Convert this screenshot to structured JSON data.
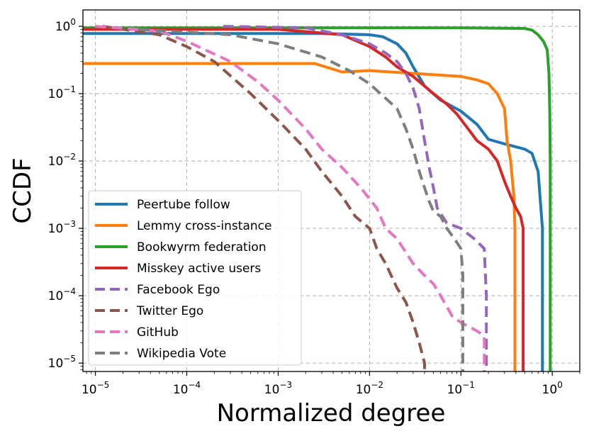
{
  "chart_data": {
    "type": "line",
    "title": "",
    "xlabel": "Normalized degree",
    "ylabel": "CCDF",
    "xscale": "log",
    "yscale": "log",
    "xlim": [
      7.3e-06,
      2.0
    ],
    "ylim": [
      7.5e-06,
      1.75
    ],
    "grid": true,
    "legend_position": "lower-left",
    "x_ticks": [
      {
        "value": 1e-05,
        "base": "10",
        "exp": "−5"
      },
      {
        "value": 0.0001,
        "base": "10",
        "exp": "−4"
      },
      {
        "value": 0.001,
        "base": "10",
        "exp": "−3"
      },
      {
        "value": 0.01,
        "base": "10",
        "exp": "−2"
      },
      {
        "value": 0.1,
        "base": "10",
        "exp": "−1"
      },
      {
        "value": 1,
        "base": "10",
        "exp": "0"
      }
    ],
    "y_ticks": [
      {
        "value": 1e-05,
        "base": "10",
        "exp": "−5"
      },
      {
        "value": 0.0001,
        "base": "10",
        "exp": "−4"
      },
      {
        "value": 0.001,
        "base": "10",
        "exp": "−3"
      },
      {
        "value": 0.01,
        "base": "10",
        "exp": "−2"
      },
      {
        "value": 0.1,
        "base": "10",
        "exp": "−1"
      },
      {
        "value": 1,
        "base": "10",
        "exp": "0"
      }
    ],
    "series": [
      {
        "name": "Peertube follow",
        "color": "#1f77b4",
        "dashed": false,
        "points": [
          [
            7.3e-06,
            0.78
          ],
          [
            0.003,
            0.78
          ],
          [
            0.01,
            0.75
          ],
          [
            0.014,
            0.7
          ],
          [
            0.02,
            0.55
          ],
          [
            0.025,
            0.4
          ],
          [
            0.03,
            0.25
          ],
          [
            0.04,
            0.13
          ],
          [
            0.06,
            0.08
          ],
          [
            0.1,
            0.055
          ],
          [
            0.15,
            0.035
          ],
          [
            0.2,
            0.021
          ],
          [
            0.3,
            0.018
          ],
          [
            0.5,
            0.015
          ],
          [
            0.6,
            0.013
          ],
          [
            0.7,
            0.007
          ],
          [
            0.75,
            0.002
          ],
          [
            0.78,
            0.001
          ],
          [
            0.78,
            7.5e-06
          ]
        ]
      },
      {
        "name": "Lemmy cross-instance",
        "color": "#ff7f0e",
        "dashed": false,
        "points": [
          [
            7.3e-06,
            0.28
          ],
          [
            0.0025,
            0.28
          ],
          [
            0.005,
            0.21
          ],
          [
            0.01,
            0.22
          ],
          [
            0.03,
            0.2
          ],
          [
            0.1,
            0.18
          ],
          [
            0.15,
            0.16
          ],
          [
            0.2,
            0.14
          ],
          [
            0.25,
            0.1
          ],
          [
            0.3,
            0.06
          ],
          [
            0.32,
            0.02
          ],
          [
            0.35,
            0.01
          ],
          [
            0.38,
            0.003
          ],
          [
            0.39,
            0.001
          ],
          [
            0.39,
            7.5e-06
          ]
        ]
      },
      {
        "name": "Bookwyrm federation",
        "color": "#2ca02c",
        "dashed": false,
        "points": [
          [
            7.3e-06,
            0.95
          ],
          [
            0.1,
            0.95
          ],
          [
            0.5,
            0.93
          ],
          [
            0.6,
            0.88
          ],
          [
            0.7,
            0.75
          ],
          [
            0.8,
            0.6
          ],
          [
            0.88,
            0.45
          ],
          [
            0.92,
            0.2
          ],
          [
            0.94,
            0.05
          ],
          [
            0.95,
            0.01
          ],
          [
            0.95,
            7.5e-06
          ]
        ]
      },
      {
        "name": "Misskey active users",
        "color": "#d62728",
        "dashed": false,
        "points": [
          [
            7.3e-06,
            0.9
          ],
          [
            0.001,
            0.9
          ],
          [
            0.005,
            0.75
          ],
          [
            0.01,
            0.5
          ],
          [
            0.015,
            0.35
          ],
          [
            0.02,
            0.25
          ],
          [
            0.03,
            0.18
          ],
          [
            0.05,
            0.1
          ],
          [
            0.07,
            0.07
          ],
          [
            0.09,
            0.05
          ],
          [
            0.12,
            0.03
          ],
          [
            0.15,
            0.02
          ],
          [
            0.2,
            0.015
          ],
          [
            0.25,
            0.01
          ],
          [
            0.3,
            0.005
          ],
          [
            0.35,
            0.003
          ],
          [
            0.4,
            0.002
          ],
          [
            0.45,
            0.0015
          ],
          [
            0.48,
            0.001
          ],
          [
            0.48,
            7.5e-06
          ]
        ]
      },
      {
        "name": "Facebook Ego",
        "color": "#9467bd",
        "dashed": true,
        "points": [
          [
            0.00025,
            1.0
          ],
          [
            0.002,
            0.95
          ],
          [
            0.005,
            0.75
          ],
          [
            0.01,
            0.55
          ],
          [
            0.015,
            0.4
          ],
          [
            0.02,
            0.3
          ],
          [
            0.025,
            0.2
          ],
          [
            0.03,
            0.12
          ],
          [
            0.035,
            0.06
          ],
          [
            0.04,
            0.02
          ],
          [
            0.045,
            0.008
          ],
          [
            0.05,
            0.004
          ],
          [
            0.055,
            0.002
          ],
          [
            0.07,
            0.0012
          ],
          [
            0.1,
            0.001
          ],
          [
            0.14,
            0.0007
          ],
          [
            0.18,
            0.0005
          ],
          [
            0.19,
            0.0001
          ],
          [
            0.19,
            7.5e-06
          ]
        ]
      },
      {
        "name": "Twitter Ego",
        "color": "#8c564b",
        "dashed": true,
        "points": [
          [
            1.2e-05,
            1.0
          ],
          [
            5e-05,
            0.75
          ],
          [
            0.0001,
            0.5
          ],
          [
            0.0002,
            0.3
          ],
          [
            0.0005,
            0.1
          ],
          [
            0.001,
            0.04
          ],
          [
            0.002,
            0.015
          ],
          [
            0.003,
            0.007
          ],
          [
            0.005,
            0.003
          ],
          [
            0.007,
            0.0015
          ],
          [
            0.01,
            0.001
          ],
          [
            0.012,
            0.0005
          ],
          [
            0.015,
            0.0003
          ],
          [
            0.02,
            0.00013
          ],
          [
            0.025,
            8e-05
          ],
          [
            0.03,
            4e-05
          ],
          [
            0.035,
            2e-05
          ],
          [
            0.04,
            1e-05
          ],
          [
            0.04,
            7.5e-06
          ]
        ]
      },
      {
        "name": "GitHub",
        "color": "#e377c2",
        "dashed": true,
        "points": [
          [
            1e-05,
            1.0
          ],
          [
            5e-05,
            0.85
          ],
          [
            0.0001,
            0.6
          ],
          [
            0.0003,
            0.3
          ],
          [
            0.0006,
            0.15
          ],
          [
            0.001,
            0.08
          ],
          [
            0.002,
            0.03
          ],
          [
            0.003,
            0.015
          ],
          [
            0.005,
            0.008
          ],
          [
            0.008,
            0.004
          ],
          [
            0.012,
            0.002
          ],
          [
            0.015,
            0.001
          ],
          [
            0.02,
            0.0007
          ],
          [
            0.03,
            0.0003
          ],
          [
            0.04,
            0.0002
          ],
          [
            0.05,
            0.00015
          ],
          [
            0.06,
            0.0001
          ],
          [
            0.08,
            5e-05
          ],
          [
            0.1,
            4e-05
          ],
          [
            0.15,
            3e-05
          ],
          [
            0.18,
            2.5e-05
          ],
          [
            0.18,
            7.5e-06
          ]
        ]
      },
      {
        "name": "Wikipedia Vote",
        "color": "#7f7f7f",
        "dashed": true,
        "points": [
          [
            3e-05,
            0.9
          ],
          [
            0.0003,
            0.75
          ],
          [
            0.001,
            0.55
          ],
          [
            0.003,
            0.35
          ],
          [
            0.006,
            0.22
          ],
          [
            0.01,
            0.14
          ],
          [
            0.02,
            0.06
          ],
          [
            0.025,
            0.03
          ],
          [
            0.03,
            0.015
          ],
          [
            0.035,
            0.007
          ],
          [
            0.04,
            0.004
          ],
          [
            0.045,
            0.0025
          ],
          [
            0.05,
            0.0018
          ],
          [
            0.06,
            0.0015
          ],
          [
            0.07,
            0.001
          ],
          [
            0.085,
            0.0007
          ],
          [
            0.1,
            0.0005
          ],
          [
            0.105,
            0.0002
          ],
          [
            0.105,
            2e-05
          ],
          [
            0.105,
            7.5e-06
          ]
        ]
      }
    ]
  }
}
